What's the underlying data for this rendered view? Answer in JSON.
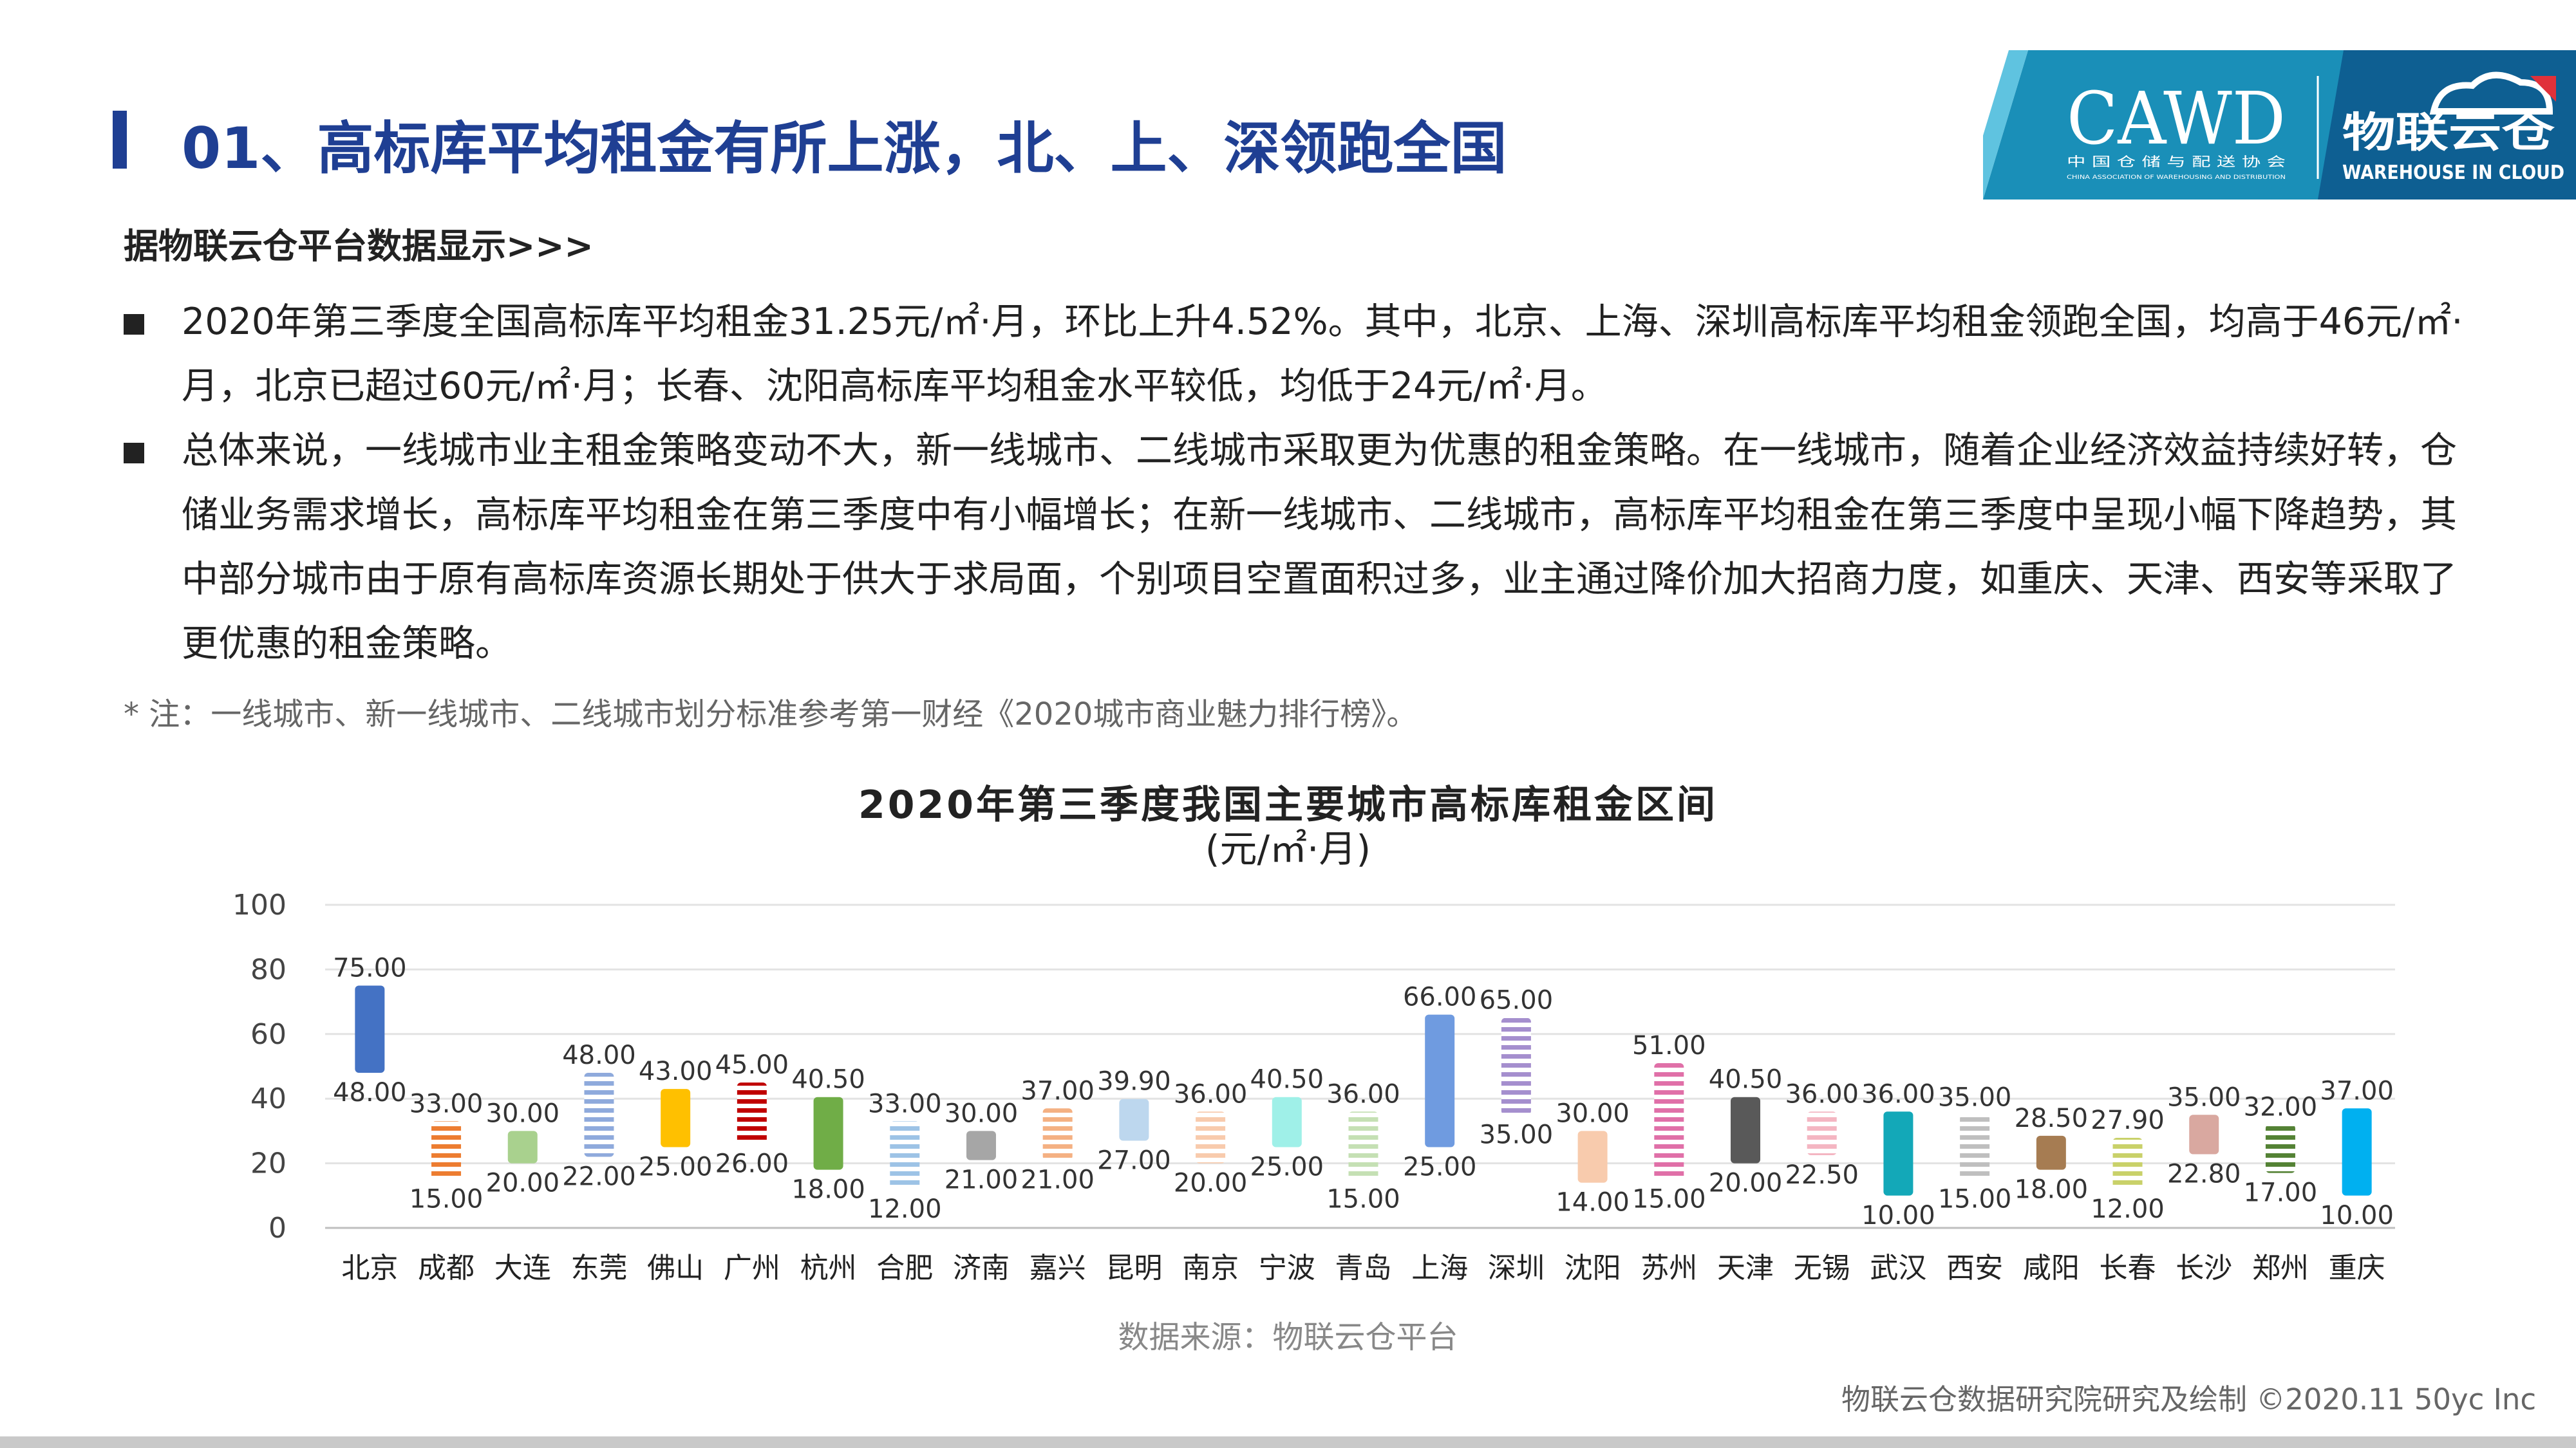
{
  "header": {
    "title": "01、高标库平均租金有所上涨，北、上、深领跑全国",
    "logo": {
      "cawd": "CAWD",
      "cawd_cn": "中 国 仓 储 与 配 送 协 会",
      "cawd_en": "CHINA ASSOCIATION OF WAREHOUSING AND DISTRIBUTION",
      "brand_cn": "物联云仓",
      "brand_en": "WAREHOUSE IN CLOUD",
      "colors": {
        "band": "#1a8fb8",
        "band_dark": "#0e5f92",
        "accent": "#e0313a"
      }
    }
  },
  "content": {
    "subheading": "据物联云仓平台数据显示>>>",
    "bullets": [
      "2020年第三季度全国高标库平均租金31.25元/㎡·月，环比上升4.52%。其中，北京、上海、深圳高标库平均租金领跑全国，均高于46元/㎡·月，北京已超过60元/㎡·月；长春、沈阳高标库平均租金水平较低，均低于24元/㎡·月。",
      "总体来说，一线城市业主租金策略变动不大，新一线城市、二线城市采取更为优惠的租金策略。在一线城市，随着企业经济效益持续好转，仓储业务需求增长，高标库平均租金在第三季度中有小幅增长；在新一线城市、二线城市，高标库平均租金在第三季度中呈现小幅下降趋势，其中部分城市由于原有高标库资源长期处于供大于求局面，个别项目空置面积过多，业主通过降价加大招商力度，如重庆、天津、西安等采取了更优惠的租金策略。"
    ],
    "note": "* 注：一线城市、新一线城市、二线城市划分标准参考第一财经《2020城市商业魅力排行榜》。"
  },
  "chart_data": {
    "type": "bar",
    "subtype": "range",
    "title": "2020年第三季度我国主要城市高标库租金区间",
    "unit": "(元/㎡·月)",
    "ylim": [
      0,
      100
    ],
    "yticks": [
      0,
      20,
      40,
      60,
      80,
      100
    ],
    "grid": true,
    "categories": [
      "北京",
      "成都",
      "大连",
      "东莞",
      "佛山",
      "广州",
      "杭州",
      "合肥",
      "济南",
      "嘉兴",
      "昆明",
      "南京",
      "宁波",
      "青岛",
      "上海",
      "深圳",
      "沈阳",
      "苏州",
      "天津",
      "无锡",
      "武汉",
      "西安",
      "咸阳",
      "长春",
      "长沙",
      "郑州",
      "重庆"
    ],
    "high": [
      75.0,
      33.0,
      30.0,
      48.0,
      43.0,
      45.0,
      40.5,
      33.0,
      30.0,
      37.0,
      39.9,
      36.0,
      40.5,
      36.0,
      66.0,
      65.0,
      30.0,
      51.0,
      40.5,
      36.0,
      36.0,
      35.0,
      28.5,
      27.9,
      35.0,
      32.0,
      37.0
    ],
    "low": [
      48.0,
      15.0,
      20.0,
      22.0,
      25.0,
      26.0,
      18.0,
      12.0,
      21.0,
      21.0,
      27.0,
      20.0,
      25.0,
      15.0,
      25.0,
      35.0,
      14.0,
      15.0,
      20.0,
      22.5,
      10.0,
      15.0,
      18.0,
      12.0,
      22.8,
      17.0,
      10.0
    ],
    "colors": [
      "#4472c4",
      "#ed7d31",
      "#a9d18e",
      "#8faadc",
      "#ffc000",
      "#c00000",
      "#70ad47",
      "#9dc3e6",
      "#a6a6a6",
      "#f4b183",
      "#bdd7ee",
      "#f8cbad",
      "#9ff0e8",
      "#c5e0b4",
      "#6f9be0",
      "#a58fce",
      "#f8cbad",
      "#e070a8",
      "#595959",
      "#f4b6c2",
      "#13a8b8",
      "#bfbfbf",
      "#a67c52",
      "#c9d16a",
      "#d9a8a0",
      "#548235",
      "#00b0f0"
    ],
    "striped": [
      false,
      true,
      false,
      true,
      false,
      true,
      false,
      true,
      false,
      true,
      false,
      true,
      false,
      true,
      false,
      true,
      false,
      true,
      false,
      true,
      false,
      true,
      false,
      true,
      false,
      true,
      false
    ],
    "source": "数据来源：物联云仓平台"
  },
  "footer": {
    "credit": "物联云仓数据研究院研究及绘制    ©2020.11 50yc Inc"
  }
}
